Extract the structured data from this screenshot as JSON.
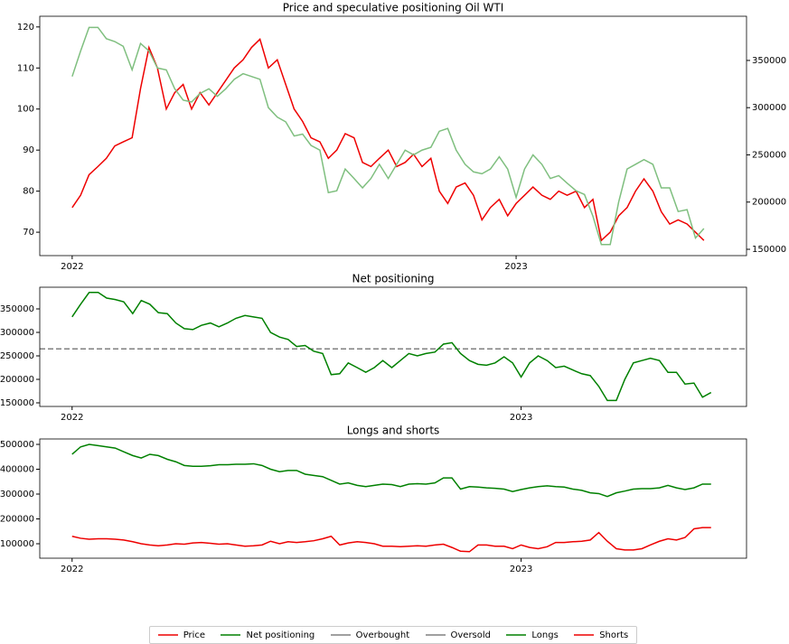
{
  "chart_data": [
    {
      "type": "line",
      "title": "Price and speculative positioning Oil WTI",
      "x": [
        2022.0,
        2022.019,
        2022.038,
        2022.058,
        2022.077,
        2022.096,
        2022.115,
        2022.135,
        2022.154,
        2022.173,
        2022.192,
        2022.212,
        2022.231,
        2022.25,
        2022.269,
        2022.288,
        2022.308,
        2022.327,
        2022.346,
        2022.365,
        2022.385,
        2022.404,
        2022.423,
        2022.442,
        2022.462,
        2022.481,
        2022.5,
        2022.519,
        2022.538,
        2022.558,
        2022.577,
        2022.596,
        2022.615,
        2022.635,
        2022.654,
        2022.673,
        2022.692,
        2022.712,
        2022.731,
        2022.75,
        2022.769,
        2022.788,
        2022.808,
        2022.827,
        2022.846,
        2022.865,
        2022.885,
        2022.904,
        2022.923,
        2022.942,
        2022.962,
        2022.981,
        2023.0,
        2023.019,
        2023.038,
        2023.058,
        2023.077,
        2023.096,
        2023.115,
        2023.135,
        2023.154,
        2023.173,
        2023.192,
        2023.212,
        2023.231,
        2023.25,
        2023.269,
        2023.288,
        2023.308,
        2023.327,
        2023.346,
        2023.365,
        2023.385,
        2023.404,
        2023.423
      ],
      "series": [
        {
          "color": "#ee0000",
          "axis": "y",
          "values": [
            76,
            79,
            84,
            86,
            88,
            91,
            92,
            93,
            105,
            115,
            110,
            100,
            104,
            106,
            100,
            104,
            101,
            104,
            107,
            110,
            112,
            115,
            117,
            110,
            112,
            106,
            100,
            97,
            93,
            92,
            88,
            90,
            94,
            93,
            87,
            86,
            88,
            90,
            86,
            87,
            89,
            86,
            88,
            80,
            77,
            81,
            82,
            79,
            73,
            76,
            78,
            74,
            77,
            79,
            81,
            79,
            78,
            80,
            79,
            80,
            76,
            78,
            68,
            70,
            74,
            76,
            80,
            83,
            80,
            75,
            72,
            73,
            72,
            70,
            68
          ]
        },
        {
          "color": "#7fbf7f",
          "axis": "y2",
          "values": [
            333000,
            360000,
            385000,
            385000,
            373000,
            370000,
            365000,
            340000,
            368000,
            360000,
            342000,
            340000,
            320000,
            308000,
            306000,
            315000,
            320000,
            312000,
            320000,
            330000,
            336000,
            333000,
            330000,
            300000,
            290000,
            285000,
            270000,
            272000,
            260000,
            255000,
            210000,
            212000,
            235000,
            225000,
            215000,
            225000,
            240000,
            225000,
            240000,
            255000,
            250000,
            255000,
            258000,
            275000,
            278000,
            255000,
            240000,
            232000,
            230000,
            235000,
            248000,
            235000,
            205000,
            235000,
            250000,
            240000,
            225000,
            228000,
            220000,
            212000,
            208000,
            185000,
            155000,
            155000,
            200000,
            235000,
            240000,
            245000,
            240000,
            215000,
            215000,
            190000,
            192000,
            162000,
            172000
          ]
        }
      ],
      "xlim": [
        2021.927,
        2023.519
      ],
      "xticks": [
        2022,
        2023
      ],
      "ylim": [
        64.3,
        122.6
      ],
      "yticks": [
        70,
        80,
        90,
        100,
        110,
        120
      ],
      "y2lim": [
        143300,
        396800
      ],
      "y2ticks": [
        150000,
        200000,
        250000,
        300000,
        350000
      ]
    },
    {
      "type": "line",
      "title": "Net positioning",
      "x": [
        2022.0,
        2022.019,
        2022.038,
        2022.058,
        2022.077,
        2022.096,
        2022.115,
        2022.135,
        2022.154,
        2022.173,
        2022.192,
        2022.212,
        2022.231,
        2022.25,
        2022.269,
        2022.288,
        2022.308,
        2022.327,
        2022.346,
        2022.365,
        2022.385,
        2022.404,
        2022.423,
        2022.442,
        2022.462,
        2022.481,
        2022.5,
        2022.519,
        2022.538,
        2022.558,
        2022.577,
        2022.596,
        2022.615,
        2022.635,
        2022.654,
        2022.673,
        2022.692,
        2022.712,
        2022.731,
        2022.75,
        2022.769,
        2022.788,
        2022.808,
        2022.827,
        2022.846,
        2022.865,
        2022.885,
        2022.904,
        2022.923,
        2022.942,
        2022.962,
        2022.981,
        2023.0,
        2023.019,
        2023.038,
        2023.058,
        2023.077,
        2023.096,
        2023.115,
        2023.135,
        2023.154,
        2023.173,
        2023.192,
        2023.212,
        2023.231,
        2023.25,
        2023.269,
        2023.288,
        2023.308,
        2023.327,
        2023.346,
        2023.365,
        2023.385,
        2023.404,
        2023.423
      ],
      "series": [
        {
          "color": "#008000",
          "values": [
            333000,
            360000,
            385000,
            385000,
            373000,
            370000,
            365000,
            340000,
            368000,
            360000,
            342000,
            340000,
            320000,
            308000,
            306000,
            315000,
            320000,
            312000,
            320000,
            330000,
            336000,
            333000,
            330000,
            300000,
            290000,
            285000,
            270000,
            272000,
            260000,
            255000,
            210000,
            212000,
            235000,
            225000,
            215000,
            225000,
            240000,
            225000,
            240000,
            255000,
            250000,
            255000,
            258000,
            275000,
            278000,
            255000,
            240000,
            232000,
            230000,
            235000,
            248000,
            235000,
            205000,
            235000,
            250000,
            240000,
            225000,
            228000,
            220000,
            212000,
            208000,
            185000,
            155000,
            155000,
            200000,
            235000,
            240000,
            245000,
            240000,
            215000,
            215000,
            190000,
            192000,
            162000,
            172000
          ]
        }
      ],
      "hlines": [
        {
          "value": 265000,
          "color": "#808080"
        }
      ],
      "xlim": [
        2021.928,
        2023.502
      ],
      "xticks": [
        2022,
        2023
      ],
      "ylim": [
        142300,
        396150
      ],
      "yticks": [
        150000,
        200000,
        250000,
        300000,
        350000
      ]
    },
    {
      "type": "line",
      "title": "Longs and shorts",
      "x": [
        2022.0,
        2022.019,
        2022.038,
        2022.058,
        2022.077,
        2022.096,
        2022.115,
        2022.135,
        2022.154,
        2022.173,
        2022.192,
        2022.212,
        2022.231,
        2022.25,
        2022.269,
        2022.288,
        2022.308,
        2022.327,
        2022.346,
        2022.365,
        2022.385,
        2022.404,
        2022.423,
        2022.442,
        2022.462,
        2022.481,
        2022.5,
        2022.519,
        2022.538,
        2022.558,
        2022.577,
        2022.596,
        2022.615,
        2022.635,
        2022.654,
        2022.673,
        2022.692,
        2022.712,
        2022.731,
        2022.75,
        2022.769,
        2022.788,
        2022.808,
        2022.827,
        2022.846,
        2022.865,
        2022.885,
        2022.904,
        2022.923,
        2022.942,
        2022.962,
        2022.981,
        2023.0,
        2023.019,
        2023.038,
        2023.058,
        2023.077,
        2023.096,
        2023.115,
        2023.135,
        2023.154,
        2023.173,
        2023.192,
        2023.212,
        2023.231,
        2023.25,
        2023.269,
        2023.288,
        2023.308,
        2023.327,
        2023.346,
        2023.365,
        2023.385,
        2023.404,
        2023.423
      ],
      "series": [
        {
          "color": "#008000",
          "values": [
            460000,
            490000,
            500000,
            495000,
            490000,
            485000,
            470000,
            455000,
            445000,
            460000,
            455000,
            440000,
            430000,
            415000,
            412000,
            412000,
            414000,
            418000,
            418000,
            420000,
            420000,
            422000,
            415000,
            400000,
            390000,
            395000,
            395000,
            380000,
            375000,
            370000,
            355000,
            340000,
            345000,
            335000,
            330000,
            335000,
            340000,
            338000,
            330000,
            340000,
            342000,
            340000,
            345000,
            365000,
            365000,
            320000,
            330000,
            328000,
            325000,
            323000,
            320000,
            310000,
            318000,
            325000,
            330000,
            333000,
            330000,
            328000,
            320000,
            315000,
            305000,
            302000,
            290000,
            305000,
            312000,
            320000,
            322000,
            322000,
            325000,
            335000,
            325000,
            318000,
            325000,
            340000,
            340000
          ]
        },
        {
          "color": "#ee0000",
          "values": [
            130000,
            122000,
            118000,
            120000,
            120000,
            118000,
            115000,
            108000,
            100000,
            95000,
            92000,
            95000,
            100000,
            98000,
            103000,
            105000,
            102000,
            98000,
            100000,
            95000,
            90000,
            92000,
            95000,
            110000,
            100000,
            108000,
            105000,
            108000,
            112000,
            120000,
            130000,
            95000,
            103000,
            108000,
            105000,
            100000,
            90000,
            90000,
            88000,
            90000,
            92000,
            90000,
            95000,
            98000,
            85000,
            70000,
            68000,
            95000,
            95000,
            90000,
            90000,
            80000,
            95000,
            85000,
            80000,
            88000,
            105000,
            105000,
            108000,
            110000,
            115000,
            145000,
            110000,
            80000,
            75000,
            75000,
            80000,
            95000,
            110000,
            120000,
            115000,
            125000,
            160000,
            165000,
            165000
          ]
        }
      ],
      "xlim": [
        2021.928,
        2023.502
      ],
      "xticks": [
        2022,
        2023
      ],
      "ylim": [
        41800,
        521800
      ],
      "yticks": [
        100000,
        200000,
        300000,
        400000,
        500000
      ]
    }
  ],
  "legend": [
    {
      "name": "Price",
      "color": "#ee0000"
    },
    {
      "name": "Net positioning",
      "color": "#008000"
    },
    {
      "name": "Overbought",
      "color": "#808080"
    },
    {
      "name": "Oversold",
      "color": "#808080"
    },
    {
      "name": "Longs",
      "color": "#008000"
    },
    {
      "name": "Shorts",
      "color": "#ee0000"
    }
  ]
}
